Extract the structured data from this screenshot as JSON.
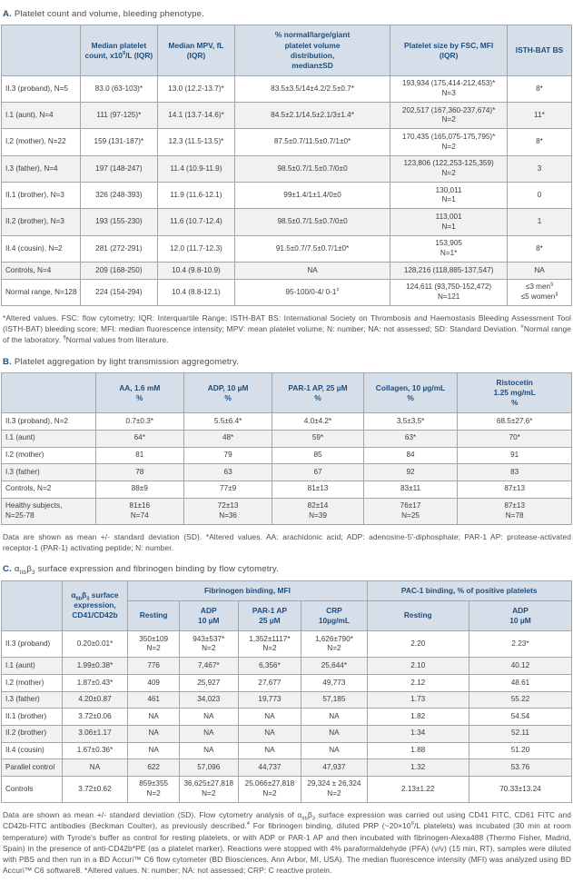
{
  "colors": {
    "header_bg": "#d6dfe9",
    "header_text": "#1d4e80",
    "body_text": "#3c3c3c",
    "row_alt_bg": "#f1f1f1",
    "border": "#a5a5a5",
    "title_accent": "#1d4e80",
    "footnote_text": "#4c4c4c"
  },
  "sectionA": {
    "title_letter": "A.",
    "title_rest_html": "Platelet count and volume, bleeding phenotype.",
    "table": {
      "col_widths": [
        "13.8%",
        "13.6%",
        "13.5%",
        "27.3%",
        "20.5%",
        "11.3%"
      ],
      "header_rows": [
        [
          {
            "html": ""
          },
          {
            "html": "Median platelet<br>count, x10<sup>9</sup>/L (IQR)"
          },
          {
            "html": "Median MPV, fL<br>(IQR)"
          },
          {
            "html": "% normal/large/giant<br>platelet volume<br>distribution,<br>median±SD"
          },
          {
            "html": "Platelet size by FSC, MFI<br>(IQR)"
          },
          {
            "html": "ISTH-BAT BS"
          }
        ]
      ],
      "rows": [
        [
          "II.3 (proband), N=5",
          "83.0 (63-103)*",
          "13.0 (12.2-13.7)*",
          "83.5±3.5/14±4.2/2.5±0.7*",
          "193,934 (175,414-212,453)*<br>N=3",
          "8*"
        ],
        [
          "I.1 (aunt), N=4",
          "111 (97-125)*",
          "14.1 (13.7-14.6)*",
          "84.5±2.1/14.5±2.1/3±1.4*",
          "202,517 (167,360-237,674)*<br>N=2",
          "11*"
        ],
        [
          "I.2 (mother), N=22",
          "159 (131-187)*",
          "12.3 (11.5-13.5)*",
          "87.5±0.7/11.5±0.7/1±0*",
          "170,435 (165,075-175,795)*<br>N=2",
          "8*"
        ],
        [
          "I.3 (father), N=4",
          "197 (148-247)",
          "11.4 (10.9-11.9)",
          "98.5±0.7/1.5±0.7/0±0",
          "123,806 (122,253-125,359)<br>N=2",
          "3"
        ],
        [
          "II.1 (brother), N=3",
          "326 (248-393)",
          "11.9 (11.6-12.1)",
          "99±1.4/1±1.4/0±0",
          "130,011<br>N=1",
          "0"
        ],
        [
          "II.2 (brother), N=3",
          "193 (155-230)",
          "11.6 (10.7-12.4)",
          "98.5±0.7/1.5±0.7/0±0",
          "113,001<br>N=1",
          "1"
        ],
        [
          "II.4 (cousin), N=2",
          "281 (272-291)",
          "12.0 (11.7-12.3)",
          "91.5±0.7/7.5±0.7/1±0*",
          "153,905<br>N=1*",
          "8*"
        ],
        [
          "Controls, N=4",
          "209 (168-250)",
          "10.4 (9.8-10.9)",
          "NA",
          "128,216 (118,885-137,547)",
          "NA"
        ],
        [
          "Normal range, N=128",
          "224 (154-294)",
          "10.4 (8.8-12.1)",
          "95-100/0-4/ 0-1<sup>#</sup>",
          "124,611 (93,750-152,472)<br>N=121",
          "≤3 men<sup>§</sup><br>≤5 women<sup>§</sup>"
        ]
      ]
    },
    "footnote_html": "*Altered values. FSC: flow cytometry; IQR: Interquartile Range; ISTH-BAT BS: International Society on Thrombosis and Haemostasis Bleeding Assessment Tool (ISTH-BAT) bleeding score; MFI: median fluorescence intensity; MPV: mean platelet volume; N: number; NA: not assessed; SD: Standard Deviation. <sup>#</sup>Normal range of the laboratory. <sup>§</sup>Normal values from literature."
  },
  "sectionB": {
    "title_letter": "B.",
    "title_rest_html": "Platelet aggregation by light transmission aggregometry.",
    "table": {
      "col_widths": [
        "16.5%",
        "15.5%",
        "15.5%",
        "16.0%",
        "16.5%",
        "20.0%"
      ],
      "header_rows": [
        [
          {
            "html": ""
          },
          {
            "html": "AA, 1.6 mM<br>%"
          },
          {
            "html": "ADP, 10 µM<br>%"
          },
          {
            "html": "PAR-1 AP, 25 µM<br>%"
          },
          {
            "html": "Collagen, 10 µg/mL<br>%"
          },
          {
            "html": "Ristocetin<br>1.25 mg/mL<br>%"
          }
        ]
      ],
      "rows": [
        [
          "II.3 (proband), N=2",
          "0.7±0.3*",
          "5.5±6.4*",
          "4.0±4.2*",
          "3.5±3.5*",
          "68.5±27.6*"
        ],
        [
          "I.1 (aunt)",
          "64*",
          "48*",
          "59*",
          "63*",
          "70*"
        ],
        [
          "I.2 (mother)",
          "81",
          "79",
          "85",
          "84",
          "91"
        ],
        [
          "I.3 (father)",
          "78",
          "63",
          "67",
          "92",
          "83"
        ],
        [
          "Controls, N=2",
          "88±9",
          "77±9",
          "81±13",
          "83±11",
          "87±13"
        ],
        [
          "Healthy subjects,<br>N=25-78",
          "81±16<br>N=74",
          "72±13<br>N=36",
          "82±14<br>N=39",
          "76±17<br>N=25",
          "87±13<br>N=78"
        ]
      ]
    },
    "footnote_html": "Data are shown as mean +/- standard deviation (SD). *Altered values. AA: arachidonic acid; ADP: adenosine-5'-diphosphate; PAR-1 AP: protease-activated receptor-1 (PAR-1) activating peptide; N: number."
  },
  "sectionC": {
    "title_letter": "C.",
    "title_rest_html": "α<sub>IIb</sub>β<sub>3</sub> surface expression and fibrinogen binding by flow cytometry.",
    "table": {
      "col_widths": [
        "10.6%",
        "11.6%",
        "9.0%",
        "10.3%",
        "11.1%",
        "11.5%",
        "17.9%",
        "18.0%"
      ],
      "header_rows": [
        [
          {
            "html": "",
            "rowspan": 2
          },
          {
            "html": "α<sub>IIb</sub>β<sub>3</sub> surface<br>expression,<br>CD41/CD42b",
            "rowspan": 2
          },
          {
            "html": "Fibrinogen binding, MFI",
            "colspan": 4
          },
          {
            "html": "PAC-1 binding, % of positive platelets",
            "colspan": 2
          }
        ],
        [
          {
            "html": "Resting"
          },
          {
            "html": "ADP<br>10 µM"
          },
          {
            "html": "PAR-1 AP<br>25 µM"
          },
          {
            "html": "CRP<br>10µg/mL"
          },
          {
            "html": "Resting"
          },
          {
            "html": "ADP<br>10 µM"
          }
        ]
      ],
      "rows": [
        [
          "II.3 (proband)",
          "0.20±0.01*",
          "350±109<br>N=2",
          "943±537*<br>N=2",
          "1,352±1117*<br>N=2",
          "1,626±790*<br>N=2",
          "2.20",
          "2.23*"
        ],
        [
          "I.1 (aunt)",
          "1.99±0.38*",
          "776",
          "7,467*",
          "6,356*",
          "25,644*",
          "2.10",
          "40.12"
        ],
        [
          "I.2 (mother)",
          "1.87±0.43*",
          "409",
          "25,927",
          "27,677",
          "49,773",
          "2.12",
          "48.61"
        ],
        [
          "I.3 (father)",
          "4.20±0.87",
          "461",
          "34,023",
          "19,773",
          "57,185",
          "1.73",
          "55.22"
        ],
        [
          "II.1 (brother)",
          "3.72±0.06",
          "NA",
          "NA",
          "NA",
          "NA",
          "1.82",
          "54.54"
        ],
        [
          "II.2 (brother)",
          "3.06±1.17",
          "NA",
          "NA",
          "NA",
          "NA",
          "1.34",
          "52.11"
        ],
        [
          "II.4 (cousin)",
          "1.67±0.36*",
          "NA",
          "NA",
          "NA",
          "NA",
          "1.88",
          "51.20"
        ],
        [
          "Parallel control",
          "NA",
          "622",
          "57,096",
          "44,737",
          "47,937",
          "1.32",
          "53.76"
        ],
        [
          "Controls",
          "3.72±0.62",
          "859±355<br>N=2",
          "36,625±27,818<br>N=2",
          "25,066±27,818<br>N=2",
          "29,324 ± 26,324<br>N=2",
          "2.13±1.22",
          "70.33±13.24"
        ]
      ]
    },
    "footnote_html": "Data are shown as mean +/- standard deviation (SD). Flow cytometry analysis of α<sub>IIb</sub>β<sub>3</sub> surface expression was carried out using CD41 FITC, CD61 FITC and CD42b-FITC antibodies (Beckman Coulter), as previously described.<sup>4</sup> For fibrinogen binding, diluted PRP (~20×10<sup>9</sup>/L platelets) was incubated (30 min at room temperature) with Tyrode's buffer as control for resting platelets, or with ADP or PAR-1 AP and then incubated with fibrinogen-Alexa488 (Thermo Fisher, Madrid, Spain) in the presence of anti-CD42b*PE (as a platelet marker). Reactions were stopped with 4% paraformaldehyde (PFA) (v/v) (15 min, RT), samples were diluted with PBS and then run in a BD Accuri™ C6 flow cytometer (BD Biosciences, Ann Arbor, MI, USA). The median fluorescence intensity (MFI) was analyzed using BD Accuri™ C6 software8. *Altered values. N: number; NA: not assessed; CRP: C reactive protein."
  }
}
